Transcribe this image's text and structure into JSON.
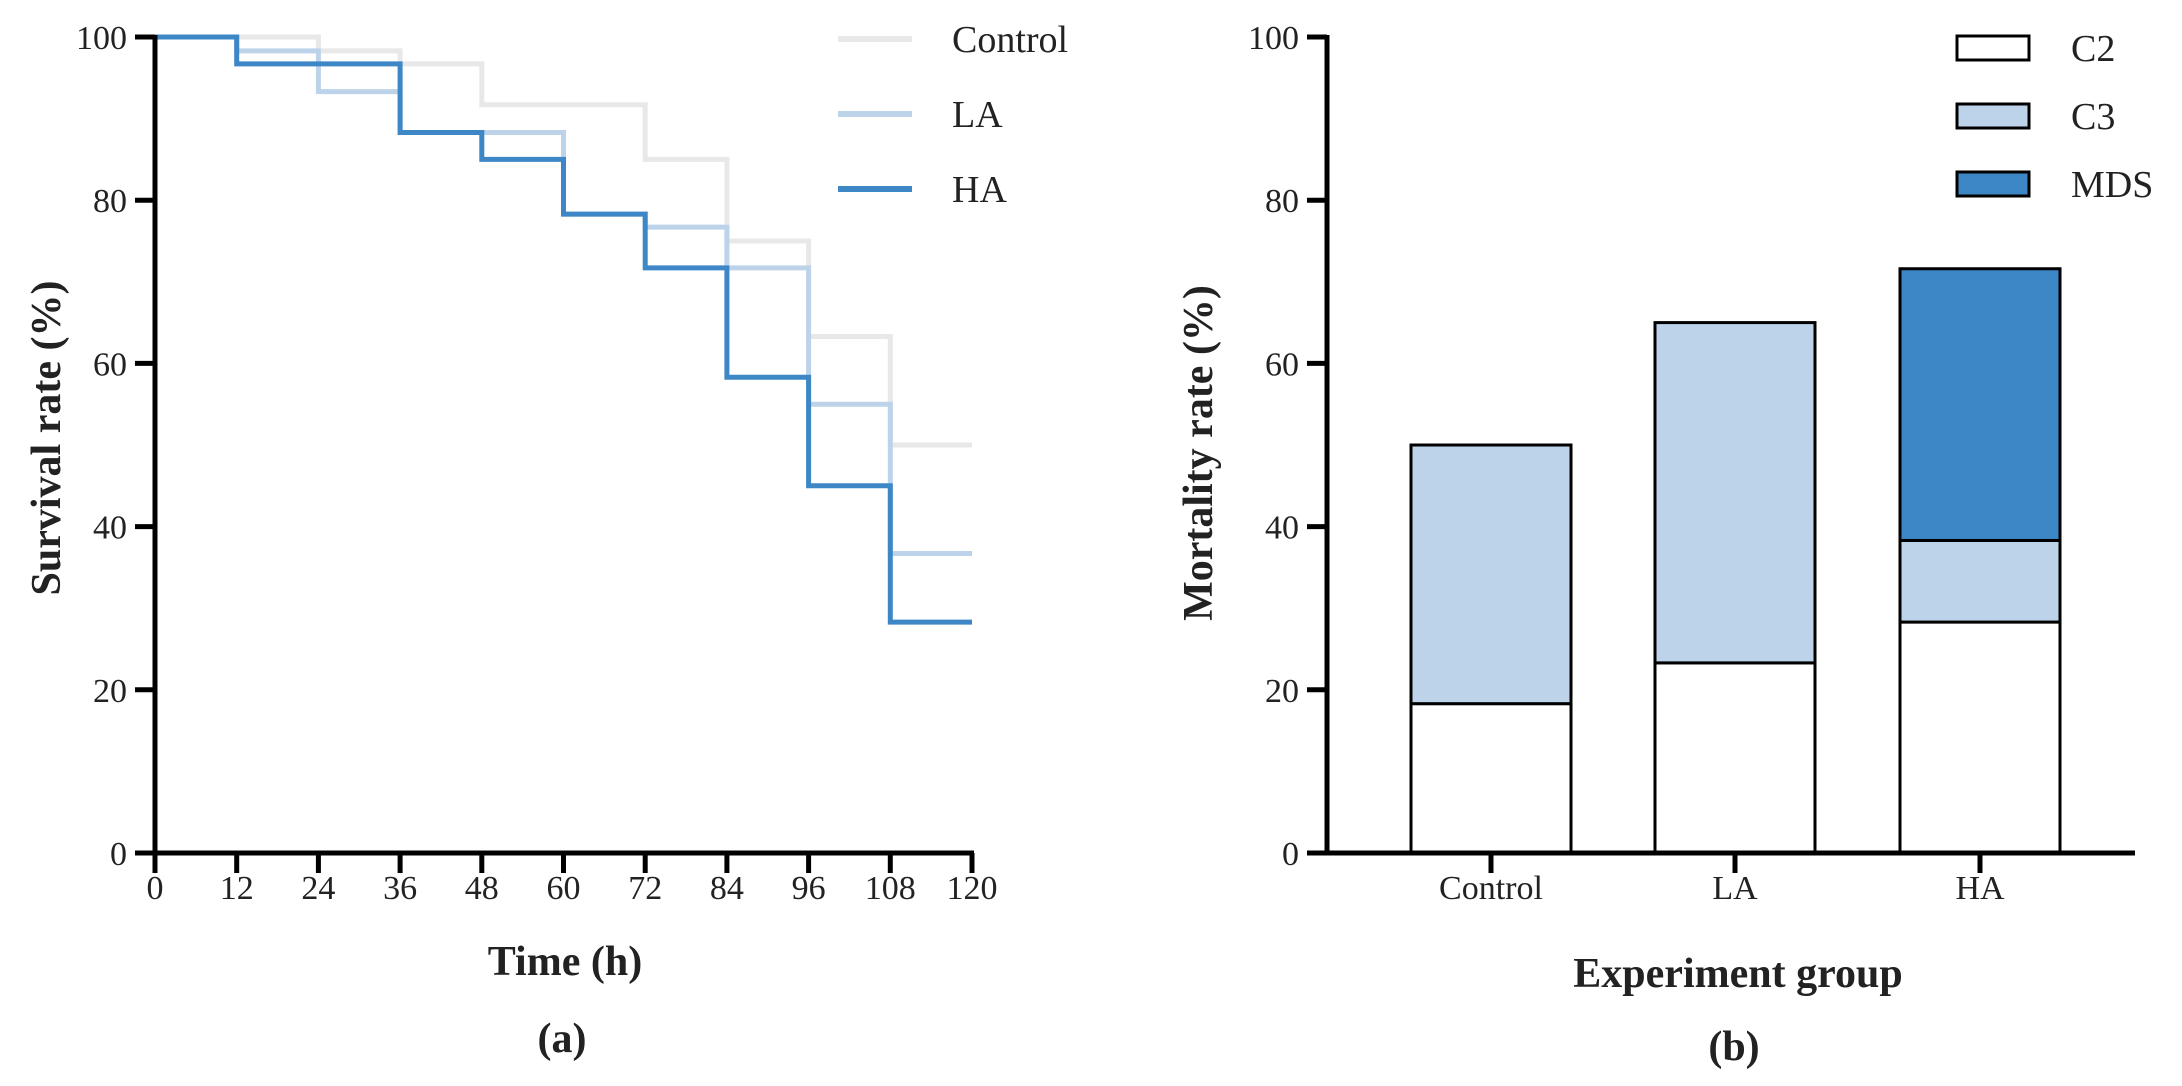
{
  "chart_data": [
    {
      "type": "line",
      "subtype": "step",
      "panel_label": "(a)",
      "xlabel": "Time (h)",
      "ylabel": "Survival rate (%)",
      "xlim": [
        0,
        120
      ],
      "ylim": [
        0,
        100
      ],
      "x_ticks": [
        0,
        12,
        24,
        36,
        48,
        60,
        72,
        84,
        96,
        108,
        120
      ],
      "y_ticks": [
        0,
        20,
        40,
        60,
        80,
        100
      ],
      "legend_position": "top-right",
      "series": [
        {
          "name": "Control",
          "color": "#e8e8e8",
          "x": [
            0,
            12,
            24,
            36,
            48,
            60,
            72,
            84,
            96,
            108,
            120
          ],
          "y": [
            100,
            100,
            98.3,
            96.7,
            91.7,
            91.7,
            85,
            75,
            63.3,
            50,
            50
          ]
        },
        {
          "name": "LA",
          "color": "#bcd3ea",
          "x": [
            0,
            12,
            24,
            36,
            48,
            60,
            72,
            84,
            96,
            108,
            120
          ],
          "y": [
            100,
            98.3,
            93.3,
            88.3,
            88.3,
            78.3,
            76.7,
            71.7,
            55,
            36.7,
            36.7
          ]
        },
        {
          "name": "HA",
          "color": "#3d87c7",
          "x": [
            0,
            12,
            24,
            36,
            48,
            60,
            72,
            84,
            96,
            108,
            120
          ],
          "y": [
            100,
            96.7,
            96.7,
            88.3,
            85,
            78.3,
            71.7,
            58.3,
            45,
            28.3,
            28.3
          ]
        }
      ]
    },
    {
      "type": "bar",
      "subtype": "stacked",
      "panel_label": "(b)",
      "xlabel": "Experiment group",
      "ylabel": "Mortality rate (%)",
      "ylim": [
        0,
        100
      ],
      "y_ticks": [
        0,
        20,
        40,
        60,
        80,
        100
      ],
      "categories": [
        "Control",
        "LA",
        "HA"
      ],
      "legend_position": "top-right",
      "series": [
        {
          "name": "C2",
          "color": "#ffffff",
          "values": [
            18.3,
            23.3,
            28.3
          ]
        },
        {
          "name": "C3",
          "color": "#bcd3ea",
          "values": [
            31.7,
            41.7,
            10
          ]
        },
        {
          "name": "MDS",
          "color": "#3d87c7",
          "values": [
            0,
            0,
            33.3
          ]
        }
      ]
    }
  ]
}
